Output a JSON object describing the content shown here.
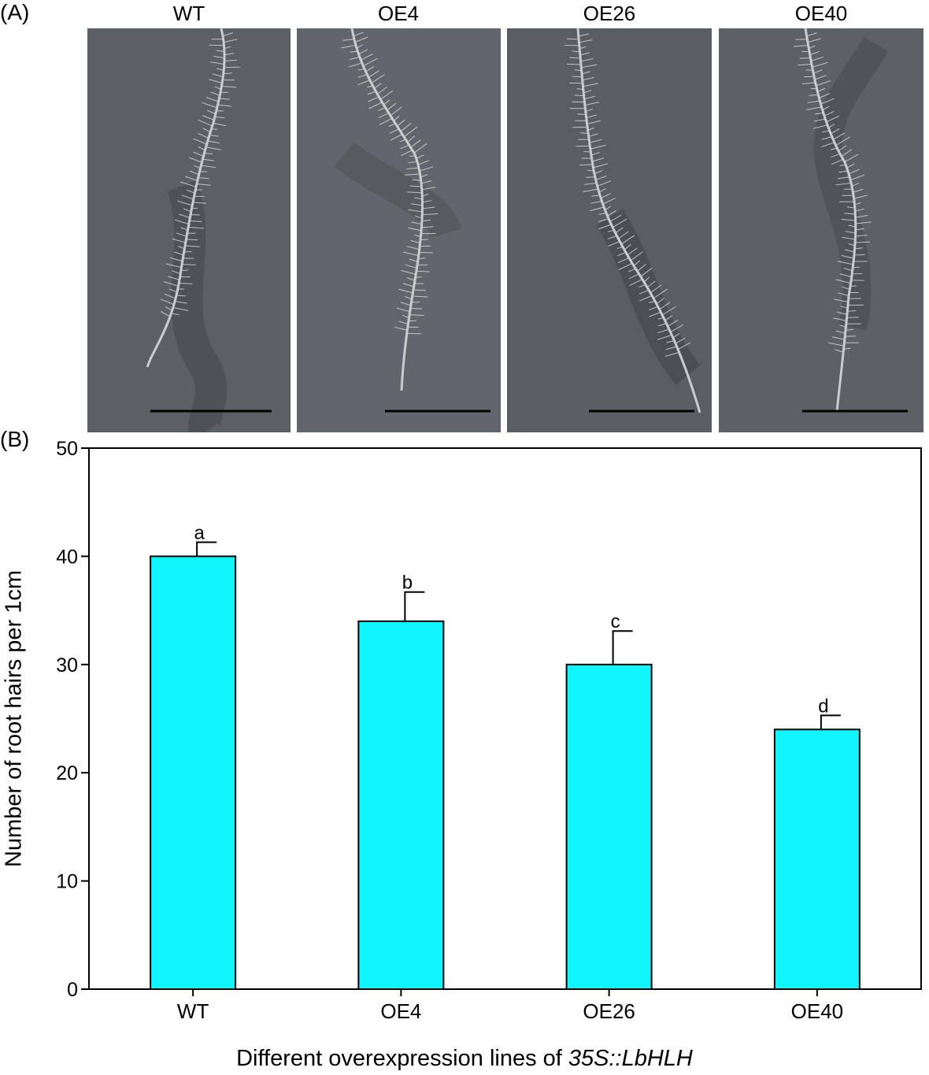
{
  "panel_a": {
    "label": "(A)",
    "photos": [
      {
        "title": "WT"
      },
      {
        "title": "OE4"
      },
      {
        "title": "OE26"
      },
      {
        "title": "OE40"
      }
    ]
  },
  "panel_b": {
    "label": "(B)"
  },
  "colors": {
    "bar": "#0ff6ff",
    "photo_bg": "#5a5d62",
    "hair": "#e6e8ea"
  },
  "chart_data": {
    "type": "bar",
    "categories": [
      "WT",
      "OE4",
      "OE26",
      "OE40"
    ],
    "values": [
      40,
      34,
      30,
      24
    ],
    "errors": [
      1.3,
      2.7,
      3.1,
      1.3
    ],
    "significance": [
      "a",
      "b",
      "c",
      "d"
    ],
    "xlabel_prefix": "Different overexpression lines of ",
    "xlabel_italic": "35S::LbHLH",
    "ylabel": "Number of root hairs per 1cm",
    "ylim": [
      0,
      50
    ],
    "yticks": [
      0,
      10,
      20,
      30,
      40,
      50
    ],
    "grid": false,
    "legend": "none"
  }
}
